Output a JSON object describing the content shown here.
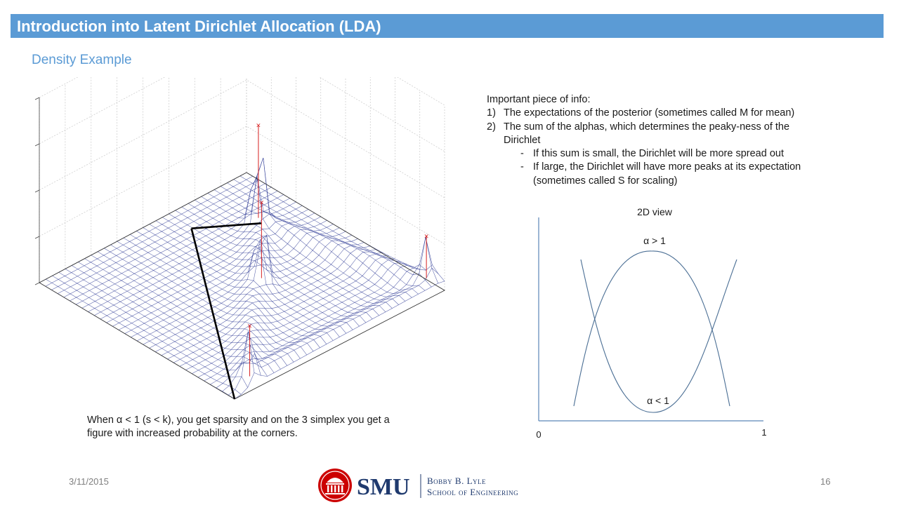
{
  "header": {
    "title": "Introduction into Latent Dirichlet Allocation (LDA)"
  },
  "subtitle": "Density Example",
  "surface_plot": {
    "caption_line1": "When α < 1 (s < k), you get sparsity and on the 3 simplex you get a",
    "caption_line2": "figure with increased probability at the corners."
  },
  "info": {
    "heading": "Important piece of info:",
    "item1_num": "1)",
    "item1_text": "The expectations of the posterior (sometimes called M for mean)",
    "item2_num": "2)",
    "item2_text_a": "The sum of the alphas, which determines the peaky-ness of the",
    "item2_text_b": "Dirichlet",
    "sub1_dash": "-",
    "sub1_text": "If this sum is small, the Dirichlet will be more spread out",
    "sub2_dash": "-",
    "sub2_text_a": "If large, the Dirichlet will have more peaks at its expectation",
    "sub2_text_b": "(sometimes called S for scaling)"
  },
  "view2d": {
    "title": "2D view",
    "label_gt": "α > 1",
    "label_lt": "α < 1",
    "x_min_label": "0",
    "x_max_label": "1"
  },
  "footer": {
    "date": "3/11/2015",
    "page": "16"
  },
  "logo": {
    "abbr": "SMU",
    "line1": "Bobby B. Lyle",
    "line2": "School of Engineering"
  },
  "colors": {
    "title_bar": "#5b9bd5",
    "subtitle": "#5b9bd5",
    "mesh": "#1c2a8c",
    "peak": "#d62020",
    "logo_red": "#cc0000",
    "logo_navy": "#1f3a6e"
  }
}
